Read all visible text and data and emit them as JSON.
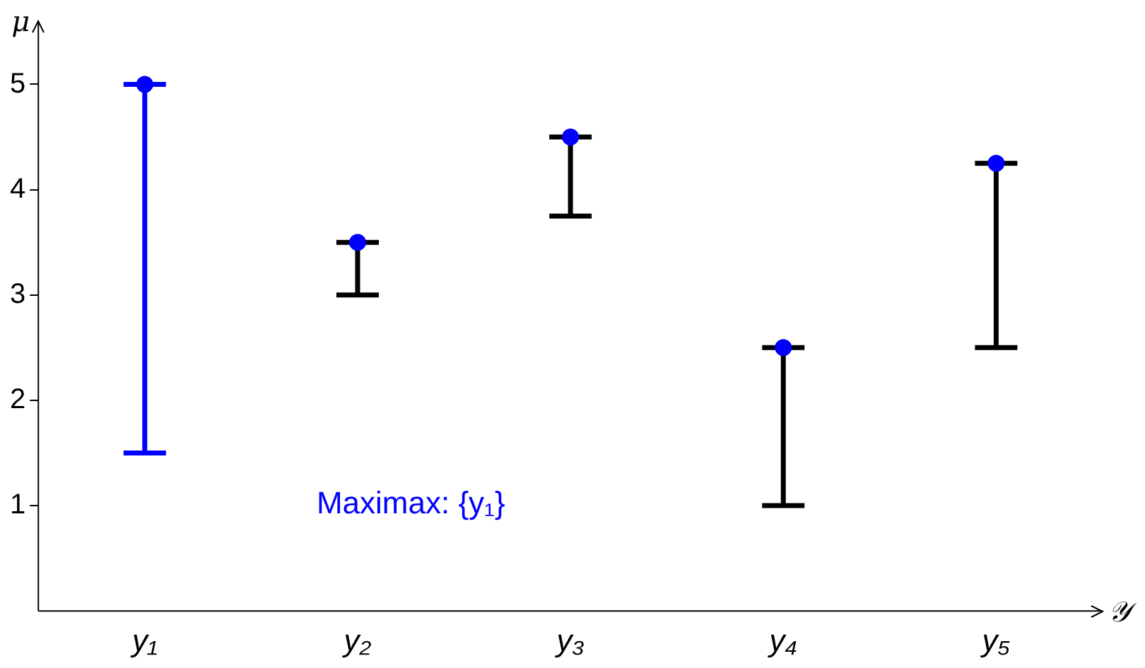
{
  "chart_data": {
    "type": "scatter",
    "xlabel": "𝒴",
    "ylabel": "μ",
    "categories": [
      "y₁",
      "y₂",
      "y₃",
      "y₄",
      "y₅"
    ],
    "series": [
      {
        "color": "#0000ff",
        "values": [
          5,
          null,
          null,
          null,
          null
        ],
        "errors": [
          [
            1.5,
            5
          ],
          null,
          null,
          null,
          null
        ]
      },
      {
        "color": "#000000",
        "colors": [
          null,
          "#0000ff",
          "#0000ff",
          "#0000ff",
          "#0000ff"
        ],
        "values": [
          null,
          3.5,
          4.5,
          2.5,
          4.25
        ],
        "errors": [
          null,
          [
            3,
            3.5
          ],
          [
            3.75,
            4.5
          ],
          [
            1,
            2.5
          ],
          [
            2.5,
            4.25
          ]
        ]
      }
    ],
    "ylim": [
      0,
      5.6
    ],
    "yticks": [
      1,
      2,
      3,
      4,
      5
    ],
    "grid": false,
    "legend": false,
    "marker": "circle",
    "annotations": [
      "Maximax: {y₁}"
    ]
  }
}
